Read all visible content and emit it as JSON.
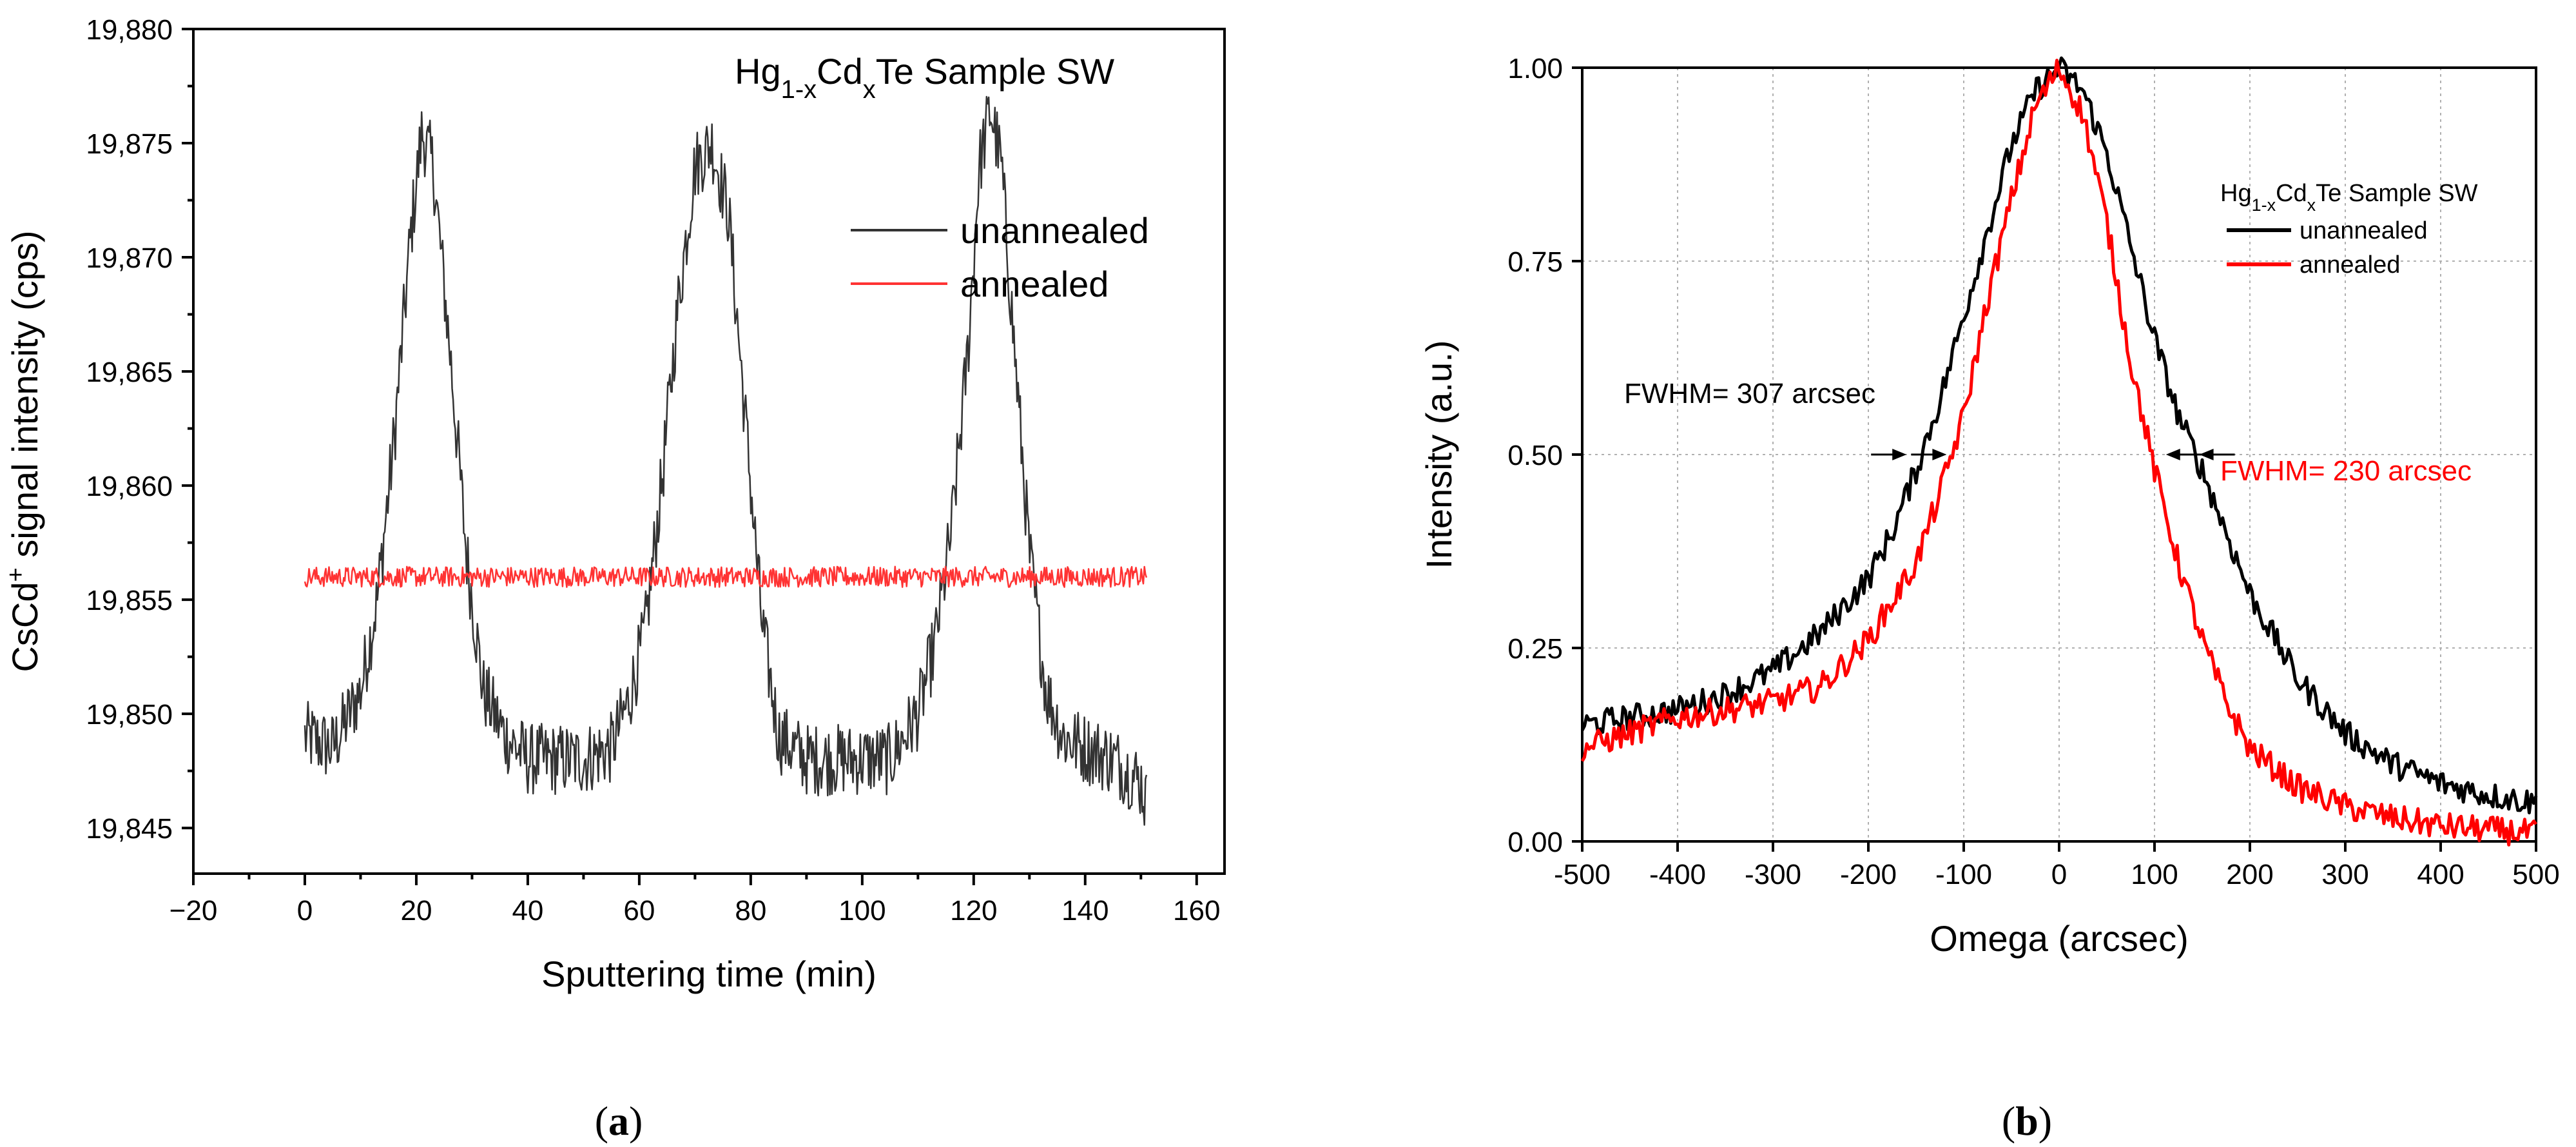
{
  "chart_data": [
    {
      "type": "line",
      "panel_label": "a",
      "title": "",
      "xlabel": "Sputtering time (min)",
      "ylabel_parts": {
        "pre": "CsCd",
        "sup": "+",
        "post": " signal intensity (cps)"
      },
      "xlim": [
        -20,
        165
      ],
      "ylim": [
        19843,
        19880
      ],
      "xticks": [
        -20,
        0,
        20,
        40,
        60,
        80,
        100,
        120,
        140,
        160
      ],
      "xtick_labels": [
        "−20",
        "0",
        "20",
        "40",
        "60",
        "80",
        "100",
        "120",
        "140",
        "160"
      ],
      "yticks": [
        19845,
        19850,
        19855,
        19860,
        19865,
        19870,
        19875,
        19880
      ],
      "ytick_labels": [
        "19,845",
        "19,850",
        "19,855",
        "19,860",
        "19,865",
        "19,870",
        "19,875",
        "19,880"
      ],
      "grid": false,
      "sample_label": {
        "pre": "Hg",
        "sub1": "1-x",
        "mid": "Cd",
        "sub2": "x",
        "post": "Te Sample SW"
      },
      "legend": {
        "position": "top-right",
        "entries": [
          "unannealed",
          "annealed"
        ]
      },
      "series": [
        {
          "name": "unannealed",
          "color": "#333333",
          "x": [
            0,
            5,
            10,
            13,
            16,
            19,
            21,
            23,
            26,
            29,
            32,
            36,
            40,
            45,
            50,
            55,
            58,
            61,
            64,
            67,
            70,
            73,
            76,
            79,
            82,
            85,
            90,
            95,
            100,
            105,
            110,
            113,
            116,
            119,
            121,
            123,
            125,
            127,
            130,
            133,
            136,
            140,
            145,
            150,
            151
          ],
          "y": [
            19849,
            19848.5,
            19851,
            19855,
            19862,
            19871,
            19875.5,
            19874,
            19866,
            19857,
            19851,
            19849,
            19848,
            19848,
            19848,
            19848.5,
            19850.5,
            19853.5,
            19860,
            19868,
            19874,
            19875,
            19872,
            19863,
            19854,
            19849,
            19848,
            19848,
            19848,
            19848,
            19850,
            19853,
            19858,
            19866,
            19874,
            19876.5,
            19874,
            19867,
            19857,
            19851,
            19849,
            19848.5,
            19848,
            19847,
            19846
          ]
        },
        {
          "name": "annealed",
          "color": "#ff3333",
          "x": [
            0,
            151
          ],
          "y": [
            19856,
            19856
          ]
        }
      ]
    },
    {
      "type": "line",
      "panel_label": "b",
      "title": "",
      "xlabel": "Omega (arcsec)",
      "ylabel": "Intensity (a.u.)",
      "xlim": [
        -500,
        500
      ],
      "ylim": [
        0,
        1
      ],
      "xticks": [
        -500,
        -400,
        -300,
        -200,
        -100,
        0,
        100,
        200,
        300,
        400,
        500
      ],
      "xtick_labels": [
        "-500",
        "-400",
        "-300",
        "-200",
        "-100",
        "0",
        "100",
        "200",
        "300",
        "400",
        "500"
      ],
      "yticks": [
        0,
        0.25,
        0.5,
        0.75,
        1
      ],
      "ytick_labels": [
        "0.00",
        "0.25",
        "0.50",
        "0.75",
        "1.00"
      ],
      "grid": true,
      "sample_label": {
        "pre": "Hg",
        "sub1": "1-x",
        "mid": "Cd",
        "sub2": "x",
        "post": "Te Sample SW"
      },
      "legend": {
        "position": "top-right",
        "entries": [
          "unannealed",
          "annealed"
        ]
      },
      "annotations": [
        {
          "text": "FWHM= 307 arcsec",
          "color": "#000000",
          "y": 0.5,
          "x_left": -160,
          "x_right": 147
        },
        {
          "text": "FWHM= 230 arcsec",
          "color": "#ff0000",
          "y": 0.5,
          "x_left": -118,
          "x_right": 112
        }
      ],
      "series": [
        {
          "name": "unannealed",
          "color": "#000000",
          "x": [
            -500,
            -450,
            -400,
            -350,
            -300,
            -250,
            -200,
            -175,
            -150,
            -125,
            -100,
            -75,
            -50,
            -25,
            0,
            25,
            50,
            75,
            100,
            125,
            150,
            175,
            200,
            250,
            300,
            350,
            400,
            450,
            500
          ],
          "y": [
            0.15,
            0.16,
            0.17,
            0.19,
            0.22,
            0.27,
            0.34,
            0.4,
            0.48,
            0.57,
            0.68,
            0.79,
            0.9,
            0.97,
            1.0,
            0.97,
            0.89,
            0.77,
            0.65,
            0.55,
            0.48,
            0.4,
            0.32,
            0.21,
            0.14,
            0.1,
            0.075,
            0.06,
            0.05
          ]
        },
        {
          "name": "annealed",
          "color": "#ff0000",
          "x": [
            -500,
            -450,
            -400,
            -350,
            -300,
            -250,
            -200,
            -175,
            -150,
            -125,
            -100,
            -75,
            -50,
            -25,
            0,
            25,
            50,
            75,
            100,
            125,
            150,
            175,
            200,
            250,
            300,
            350,
            400,
            450,
            500
          ],
          "y": [
            0.12,
            0.14,
            0.16,
            0.17,
            0.18,
            0.2,
            0.26,
            0.31,
            0.36,
            0.45,
            0.55,
            0.7,
            0.83,
            0.95,
            1.0,
            0.94,
            0.8,
            0.62,
            0.48,
            0.36,
            0.26,
            0.18,
            0.12,
            0.07,
            0.045,
            0.03,
            0.02,
            0.015,
            0.01
          ]
        }
      ]
    }
  ]
}
